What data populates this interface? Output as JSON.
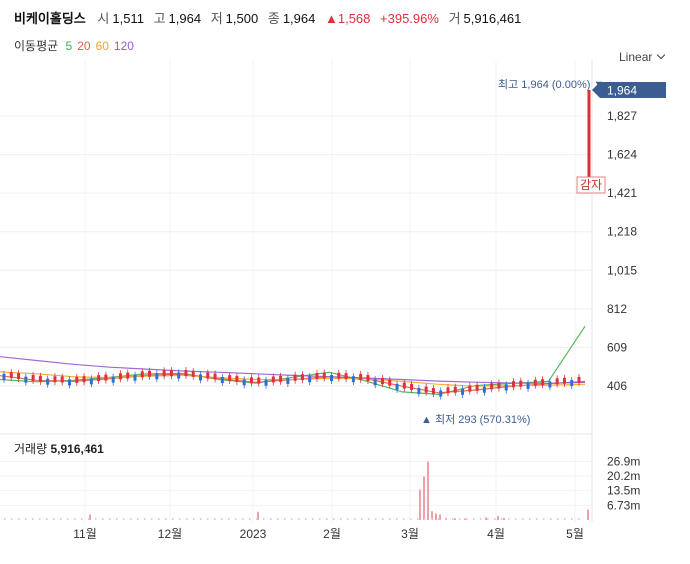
{
  "header": {
    "name": "비케이홀딩스",
    "open_label": "시",
    "open": "1,511",
    "high_label": "고",
    "high": "1,964",
    "low_label": "저",
    "low": "1,500",
    "close_label": "종",
    "close": "1,964",
    "change": "▲1,568",
    "change_pct": "+395.96%",
    "volume_label": "거",
    "volume": "5,916,461"
  },
  "moving_average": {
    "title": "이동평균",
    "periods": [
      {
        "label": "5",
        "color": "#3cb44b"
      },
      {
        "label": "20",
        "color": "#e8594a"
      },
      {
        "label": "60",
        "color": "#f5a623"
      },
      {
        "label": "120",
        "color": "#9b59d0"
      }
    ]
  },
  "scale_mode": "Linear",
  "chart_data": {
    "type": "candlestick",
    "price_axis": {
      "ticks": [
        "1,827",
        "1,624",
        "1,421",
        "1,218",
        "1,015",
        "812",
        "609",
        "406"
      ],
      "tick_values": [
        1827,
        1624,
        1421,
        1218,
        1015,
        812,
        609,
        406
      ],
      "current": "1,964"
    },
    "x_axis": {
      "ticks": [
        "11월",
        "12월",
        "2023",
        "2월",
        "3월",
        "4월",
        "5월"
      ]
    },
    "annotations": {
      "high": "최고 1,964 (0.00%) ▼",
      "low": "▲ 최저 293 (570.31%)",
      "halt": "감자"
    },
    "volume": {
      "label": "거래량",
      "value": "5,916,461",
      "ticks": [
        "26.9m",
        "20.2m",
        "13.5m",
        "6.73m"
      ],
      "tick_values": [
        26.9,
        20.2,
        13.5,
        6.73
      ]
    },
    "series": [
      {
        "name": "5",
        "color": "#3cb44b",
        "values": [
          440,
          428,
          436,
          452,
          470,
          472,
          440,
          421,
          452,
          478,
          433,
          375,
          362,
          408,
          420,
          430,
          720
        ]
      },
      {
        "name": "20",
        "color": "#e8594a",
        "values": [
          460,
          436,
          430,
          445,
          462,
          468,
          445,
          425,
          440,
          455,
          445,
          405,
          370,
          385,
          405,
          418,
          430
        ]
      },
      {
        "name": "60",
        "color": "#f5a623",
        "values": [
          480,
          470,
          455,
          450,
          458,
          462,
          450,
          440,
          440,
          446,
          445,
          430,
          415,
          405,
          408,
          410,
          415
        ]
      },
      {
        "name": "120",
        "color": "#9b59d0",
        "values": [
          560,
          540,
          520,
          505,
          495,
          485,
          478,
          470,
          462,
          455,
          448,
          440,
          432,
          426,
          422,
          420,
          425
        ]
      }
    ]
  }
}
